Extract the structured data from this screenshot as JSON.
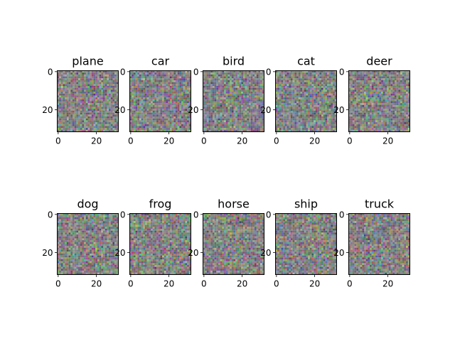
{
  "chart_data": {
    "type": "heatmap",
    "description_kind": "image grid",
    "layout": "2 rows x 5 columns",
    "image_size": [
      32,
      32
    ],
    "cell_content": "random-noise RGB pixels",
    "panels": [
      {
        "title": "plane",
        "xticks": [
          "0",
          "20"
        ],
        "yticks": [
          "0",
          "20"
        ],
        "xlim": [
          -0.5,
          31.5
        ],
        "ylim": [
          31.5,
          -0.5
        ]
      },
      {
        "title": "car",
        "xticks": [
          "0",
          "20"
        ],
        "yticks": [
          "0",
          "20"
        ],
        "xlim": [
          -0.5,
          31.5
        ],
        "ylim": [
          31.5,
          -0.5
        ]
      },
      {
        "title": "bird",
        "xticks": [
          "0",
          "20"
        ],
        "yticks": [
          "0",
          "20"
        ],
        "xlim": [
          -0.5,
          31.5
        ],
        "ylim": [
          31.5,
          -0.5
        ]
      },
      {
        "title": "cat",
        "xticks": [
          "0",
          "20"
        ],
        "yticks": [
          "0",
          "20"
        ],
        "xlim": [
          -0.5,
          31.5
        ],
        "ylim": [
          31.5,
          -0.5
        ]
      },
      {
        "title": "deer",
        "xticks": [
          "0",
          "20"
        ],
        "yticks": [
          "0",
          "20"
        ],
        "xlim": [
          -0.5,
          31.5
        ],
        "ylim": [
          31.5,
          -0.5
        ]
      },
      {
        "title": "dog",
        "xticks": [
          "0",
          "20"
        ],
        "yticks": [
          "0",
          "20"
        ],
        "xlim": [
          -0.5,
          31.5
        ],
        "ylim": [
          31.5,
          -0.5
        ]
      },
      {
        "title": "frog",
        "xticks": [
          "0",
          "20"
        ],
        "yticks": [
          "0",
          "20"
        ],
        "xlim": [
          -0.5,
          31.5
        ],
        "ylim": [
          31.5,
          -0.5
        ]
      },
      {
        "title": "horse",
        "xticks": [
          "0",
          "20"
        ],
        "yticks": [
          "0",
          "20"
        ],
        "xlim": [
          -0.5,
          31.5
        ],
        "ylim": [
          31.5,
          -0.5
        ]
      },
      {
        "title": "ship",
        "xticks": [
          "0",
          "20"
        ],
        "yticks": [
          "0",
          "20"
        ],
        "xlim": [
          -0.5,
          31.5
        ],
        "ylim": [
          31.5,
          -0.5
        ]
      },
      {
        "title": "truck",
        "xticks": [
          "0",
          "20"
        ],
        "yticks": [
          "0",
          "20"
        ],
        "xlim": [
          -0.5,
          31.5
        ],
        "ylim": [
          31.5,
          -0.5
        ]
      }
    ]
  },
  "colors": {
    "background": "#ffffff",
    "axis": "#000000",
    "text": "#000000",
    "noise_mean": "#7f7f7f"
  }
}
